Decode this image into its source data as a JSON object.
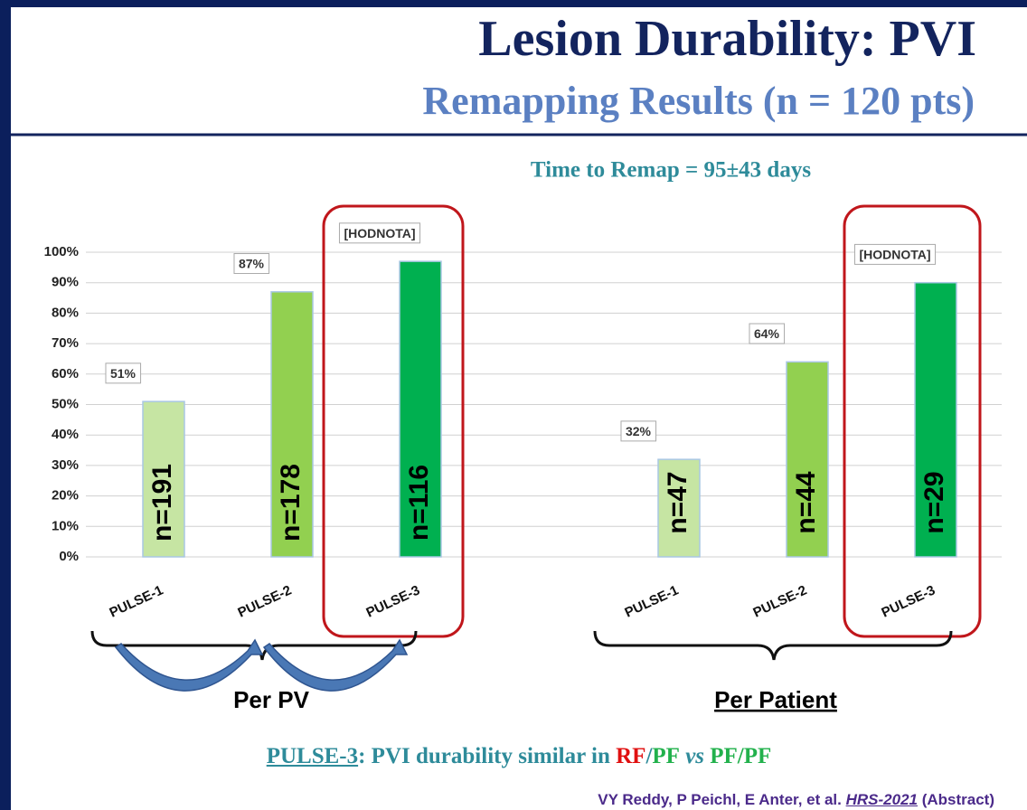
{
  "header": {
    "title": "Lesion Durability: PVI",
    "subtitle": "Remapping Results (n = 120 pts)"
  },
  "chart_data": {
    "type": "bar",
    "title": "Time to Remap = 95±43 days",
    "ylim": [
      0,
      100
    ],
    "yticks": [
      {
        "value": 0,
        "label": "0%"
      },
      {
        "value": 10,
        "label": "10%"
      },
      {
        "value": 20,
        "label": "20%"
      },
      {
        "value": 30,
        "label": "30%"
      },
      {
        "value": 40,
        "label": "40%"
      },
      {
        "value": 50,
        "label": "50%"
      },
      {
        "value": 60,
        "label": "60%"
      },
      {
        "value": 70,
        "label": "70%"
      },
      {
        "value": 80,
        "label": "80%"
      },
      {
        "value": 90,
        "label": "90%"
      },
      {
        "value": 100,
        "label": "100%"
      }
    ],
    "grid": true,
    "colors": [
      "#c6e5a3",
      "#92d050",
      "#00b050"
    ],
    "groups": [
      {
        "name": "Per PV",
        "categories": [
          "PULSE-1",
          "PULSE-2",
          "PULSE-3"
        ],
        "values": [
          51,
          87,
          97
        ],
        "value_labels": [
          "51%",
          "87%",
          "[HODNOTA]"
        ],
        "annotations": [
          "n=191",
          "n=178",
          "n=116"
        ]
      },
      {
        "name": "Per Patient",
        "categories": [
          "PULSE-1",
          "PULSE-2",
          "PULSE-3"
        ],
        "values": [
          32,
          64,
          90
        ],
        "value_labels": [
          "32%",
          "64%",
          "[HODNOTA]"
        ],
        "annotations": [
          "n=47",
          "n=44",
          "n=29"
        ]
      }
    ]
  },
  "footer": {
    "parts": [
      "PULSE-3",
      ": PVI durability similar in ",
      "RF",
      "/",
      "PF",
      " vs ",
      "PF/PF"
    ]
  },
  "citation": {
    "parts": [
      "VY Reddy, P Peichl, E Anter, et al. ",
      "HRS-2021",
      " (Abstract)"
    ]
  }
}
